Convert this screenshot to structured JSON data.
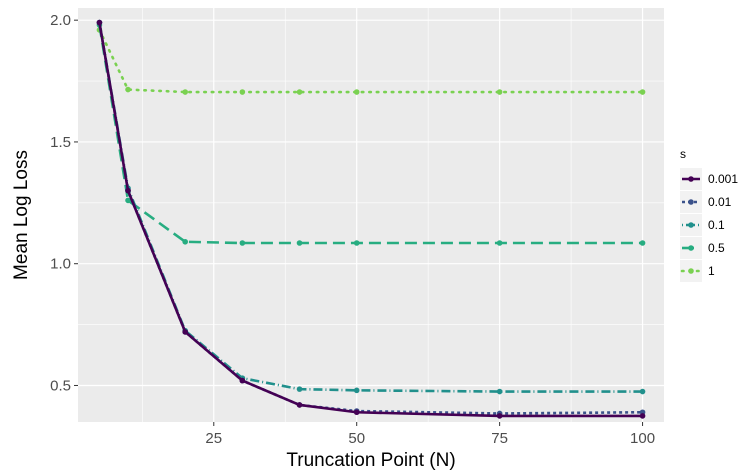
{
  "chart_data": {
    "type": "line",
    "title": "",
    "xlabel": "Truncation Point (N)",
    "ylabel": "Mean Log Loss",
    "xlim": [
      1.25,
      103.75
    ],
    "ylim": [
      0.35,
      2.05
    ],
    "x_ticks": [
      25,
      50,
      75,
      100
    ],
    "y_ticks": [
      0.5,
      1.0,
      1.5,
      2.0
    ],
    "x_tick_labels": [
      "25",
      "50",
      "75",
      "100"
    ],
    "y_tick_labels": [
      "0.5",
      "1.0",
      "1.5",
      "2.0"
    ],
    "grid": true,
    "legend": {
      "title": "s",
      "position": "right"
    },
    "x": [
      5,
      10,
      20,
      30,
      40,
      50,
      75,
      100
    ],
    "series": [
      {
        "name": "0.001",
        "color": "#440154",
        "dash": "solid",
        "values": [
          1.99,
          1.3,
          0.72,
          0.52,
          0.42,
          0.39,
          0.375,
          0.375
        ]
      },
      {
        "name": "0.01",
        "color": "#3B528B",
        "dash": "dashed-short",
        "values": [
          1.99,
          1.3,
          0.72,
          0.52,
          0.42,
          0.395,
          0.385,
          0.39
        ]
      },
      {
        "name": "0.1",
        "color": "#21908C",
        "dash": "dashdot",
        "values": [
          1.99,
          1.31,
          0.725,
          0.53,
          0.485,
          0.48,
          0.475,
          0.475
        ]
      },
      {
        "name": "0.5",
        "color": "#27AD81",
        "dash": "dashed-long",
        "values": [
          1.98,
          1.26,
          1.09,
          1.085,
          1.085,
          1.085,
          1.085,
          1.085
        ]
      },
      {
        "name": "1",
        "color": "#7AD151",
        "dash": "dotted",
        "values": [
          1.96,
          1.715,
          1.705,
          1.705,
          1.705,
          1.705,
          1.705,
          1.705
        ]
      }
    ]
  }
}
